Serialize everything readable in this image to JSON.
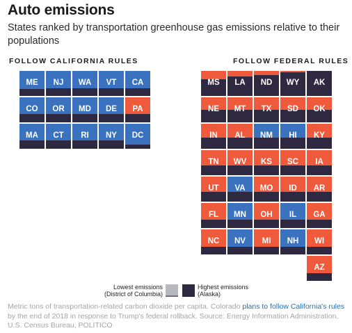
{
  "title": "Auto emissions",
  "subtitle": "States ranked by transportation greenhouse gas emissions relative to their populations",
  "colors": {
    "california": "#3a72c0",
    "federal": "#f05a3c",
    "high": "#2e2940",
    "low": "#b8b9be"
  },
  "chart_data": {
    "type": "tile-grid",
    "groups": [
      {
        "label": "FOLLOW CALIFORNIA RULES",
        "tiles": [
          {
            "state": "ME",
            "rule": "california",
            "value": 0.72
          },
          {
            "state": "NJ",
            "rule": "california",
            "value": 0.7
          },
          {
            "state": "WA",
            "rule": "california",
            "value": 0.7
          },
          {
            "state": "VT",
            "rule": "california",
            "value": 0.7
          },
          {
            "state": "CA",
            "rule": "california",
            "value": 0.69
          },
          {
            "state": "CO",
            "rule": "california",
            "value": 0.67
          },
          {
            "state": "OR",
            "rule": "california",
            "value": 0.67
          },
          {
            "state": "MD",
            "rule": "california",
            "value": 0.67
          },
          {
            "state": "DE",
            "rule": "california",
            "value": 0.67
          },
          {
            "state": "PA",
            "rule": "federal",
            "value": 0.67
          },
          {
            "state": "MA",
            "rule": "california",
            "value": 0.67
          },
          {
            "state": "CT",
            "rule": "california",
            "value": 0.67
          },
          {
            "state": "RI",
            "rule": "california",
            "value": 0.67
          },
          {
            "state": "NY",
            "rule": "california",
            "value": 0.67
          },
          {
            "state": "DC",
            "rule": "california",
            "value": 0.83
          }
        ]
      },
      {
        "label": "FOLLOW FEDERAL RULES",
        "tiles": [
          {
            "state": "MS",
            "rule": "federal",
            "value": 0.33
          },
          {
            "state": "LA",
            "rule": "federal",
            "value": 0.22
          },
          {
            "state": "ND",
            "rule": "federal",
            "value": 0.17
          },
          {
            "state": "WY",
            "rule": "federal",
            "value": 0.06
          },
          {
            "state": "AK",
            "rule": "federal",
            "value": 0.0
          },
          {
            "state": "NE",
            "rule": "federal",
            "value": 0.5
          },
          {
            "state": "MT",
            "rule": "federal",
            "value": 0.5
          },
          {
            "state": "TX",
            "rule": "federal",
            "value": 0.5
          },
          {
            "state": "SD",
            "rule": "federal",
            "value": 0.5
          },
          {
            "state": "OK",
            "rule": "federal",
            "value": 0.5
          },
          {
            "state": "IN",
            "rule": "federal",
            "value": 0.56
          },
          {
            "state": "AL",
            "rule": "federal",
            "value": 0.56
          },
          {
            "state": "NM",
            "rule": "california",
            "value": 0.56
          },
          {
            "state": "HI",
            "rule": "california",
            "value": 0.56
          },
          {
            "state": "KY",
            "rule": "federal",
            "value": 0.56
          },
          {
            "state": "TN",
            "rule": "federal",
            "value": 0.61
          },
          {
            "state": "WV",
            "rule": "federal",
            "value": 0.61
          },
          {
            "state": "KS",
            "rule": "federal",
            "value": 0.61
          },
          {
            "state": "SC",
            "rule": "federal",
            "value": 0.61
          },
          {
            "state": "IA",
            "rule": "federal",
            "value": 0.61
          },
          {
            "state": "UT",
            "rule": "federal",
            "value": 0.61
          },
          {
            "state": "VA",
            "rule": "california",
            "value": 0.61
          },
          {
            "state": "MO",
            "rule": "federal",
            "value": 0.61
          },
          {
            "state": "ID",
            "rule": "federal",
            "value": 0.61
          },
          {
            "state": "AR",
            "rule": "federal",
            "value": 0.61
          },
          {
            "state": "FL",
            "rule": "federal",
            "value": 0.67
          },
          {
            "state": "MN",
            "rule": "california",
            "value": 0.67
          },
          {
            "state": "OH",
            "rule": "federal",
            "value": 0.67
          },
          {
            "state": "IL",
            "rule": "california",
            "value": 0.67
          },
          {
            "state": "GA",
            "rule": "federal",
            "value": 0.67
          },
          {
            "state": "NC",
            "rule": "federal",
            "value": 0.69
          },
          {
            "state": "NV",
            "rule": "california",
            "value": 0.69
          },
          {
            "state": "MI",
            "rule": "federal",
            "value": 0.69
          },
          {
            "state": "NH",
            "rule": "california",
            "value": 0.69
          },
          {
            "state": "WI",
            "rule": "federal",
            "value": 0.69
          },
          {
            "state": "AZ",
            "rule": "federal",
            "value": 0.69
          }
        ]
      }
    ]
  },
  "legend": {
    "low_label_1": "Lowest emissions",
    "low_label_2": "(District of Columbia)",
    "high_label_1": "Highest emissions",
    "high_label_2": "(Alaska)"
  },
  "note": {
    "text1": "Metric tons of transportation-related carbon dioxide per capita. Colorado ",
    "link": "plans to follow California's rules",
    "text2": " by the end of 2018 in response to Trump's federal rollback. Source: Energy Information Administration, U.S. Census Bureau, POLITICO"
  }
}
